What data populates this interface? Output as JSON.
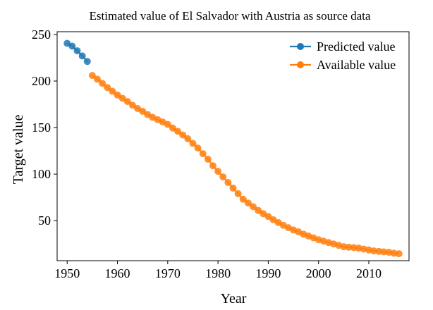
{
  "chart_data": {
    "type": "line",
    "title": "Estimated value of El Salvador with Austria as source data",
    "xlabel": "Year",
    "ylabel": "Target value",
    "xlim": [
      1948,
      2018
    ],
    "ylim": [
      7,
      253
    ],
    "xticks": [
      1950,
      1960,
      1970,
      1980,
      1990,
      2000,
      2010
    ],
    "yticks": [
      50,
      100,
      150,
      200,
      250
    ],
    "grid": false,
    "legend_position": "top-right",
    "series": [
      {
        "name": "Predicted value",
        "color": "#1f77b4",
        "x": [
          1950,
          1951,
          1952,
          1953,
          1954
        ],
        "y": [
          240.5,
          237.5,
          232.5,
          227,
          221
        ]
      },
      {
        "name": "Available value",
        "color": "#ff7f0e",
        "x": [
          1955,
          1956,
          1957,
          1958,
          1959,
          1960,
          1961,
          1962,
          1963,
          1964,
          1965,
          1966,
          1967,
          1968,
          1969,
          1970,
          1971,
          1972,
          1973,
          1974,
          1975,
          1976,
          1977,
          1978,
          1979,
          1980,
          1981,
          1982,
          1983,
          1984,
          1985,
          1986,
          1987,
          1988,
          1989,
          1990,
          1991,
          1992,
          1993,
          1994,
          1995,
          1996,
          1997,
          1998,
          1999,
          2000,
          2001,
          2002,
          2003,
          2004,
          2005,
          2006,
          2007,
          2008,
          2009,
          2010,
          2011,
          2012,
          2013,
          2014,
          2015,
          2016
        ],
        "y": [
          206,
          202,
          197.5,
          193,
          189,
          185,
          181.5,
          178,
          174,
          170.5,
          167.5,
          164,
          161,
          158.5,
          156,
          153.5,
          149.5,
          146,
          142,
          138,
          133,
          128,
          122,
          116,
          109,
          103,
          97,
          91,
          85,
          79,
          73,
          69,
          65,
          61,
          57.5,
          54.5,
          51,
          48,
          45,
          42.5,
          40,
          38,
          35.5,
          33.5,
          31.5,
          29.5,
          28,
          26.5,
          25,
          23.5,
          22,
          21.5,
          21,
          20.5,
          19.5,
          18.5,
          17.5,
          17,
          16.5,
          16,
          15,
          14.5
        ]
      }
    ]
  }
}
